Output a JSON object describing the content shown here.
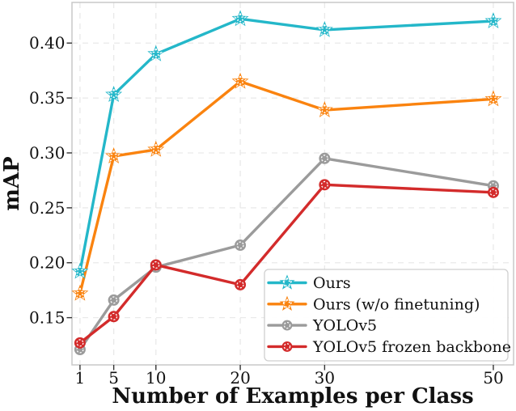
{
  "chart_data": {
    "type": "line",
    "title": "",
    "xlabel": "Number of Examples per Class",
    "ylabel": "mAP",
    "x": [
      1,
      5,
      10,
      20,
      30,
      50
    ],
    "x_ticks": [
      1,
      5,
      10,
      20,
      30,
      50
    ],
    "x_tick_labels": [
      "1",
      "5",
      "10",
      "20",
      "30",
      "50"
    ],
    "y_ticks": [
      0.15,
      0.2,
      0.25,
      0.3,
      0.35,
      0.4
    ],
    "y_tick_labels": [
      "0.15",
      "0.20",
      "0.25",
      "0.30",
      "0.35",
      "0.40"
    ],
    "xlim": [
      0.05,
      52.4
    ],
    "ylim": [
      0.107,
      0.437
    ],
    "grid": true,
    "grid_style": "dashed",
    "legend_position": "lower right",
    "series": [
      {
        "name": "Ours",
        "marker": "star",
        "color": "#24b7c9",
        "values": [
          0.192,
          0.353,
          0.39,
          0.422,
          0.412,
          0.42
        ]
      },
      {
        "name": "Ours (w/o finetuning)",
        "marker": "star",
        "color": "#fa830f",
        "values": [
          0.172,
          0.297,
          0.303,
          0.365,
          0.339,
          0.349
        ]
      },
      {
        "name": "YOLOv5",
        "marker": "circle",
        "color": "#9b9b9b",
        "values": [
          0.121,
          0.166,
          0.196,
          0.216,
          0.295,
          0.27
        ]
      },
      {
        "name": "YOLOv5 frozen backbone",
        "marker": "circle",
        "color": "#d32b2b",
        "values": [
          0.127,
          0.151,
          0.198,
          0.18,
          0.271,
          0.264
        ]
      }
    ],
    "colors": {
      "grid": "#e9e9e9",
      "border": "#c8c8c8",
      "tick": "#333333",
      "text": "#111111",
      "legend_border": "#cfcfcf"
    }
  }
}
